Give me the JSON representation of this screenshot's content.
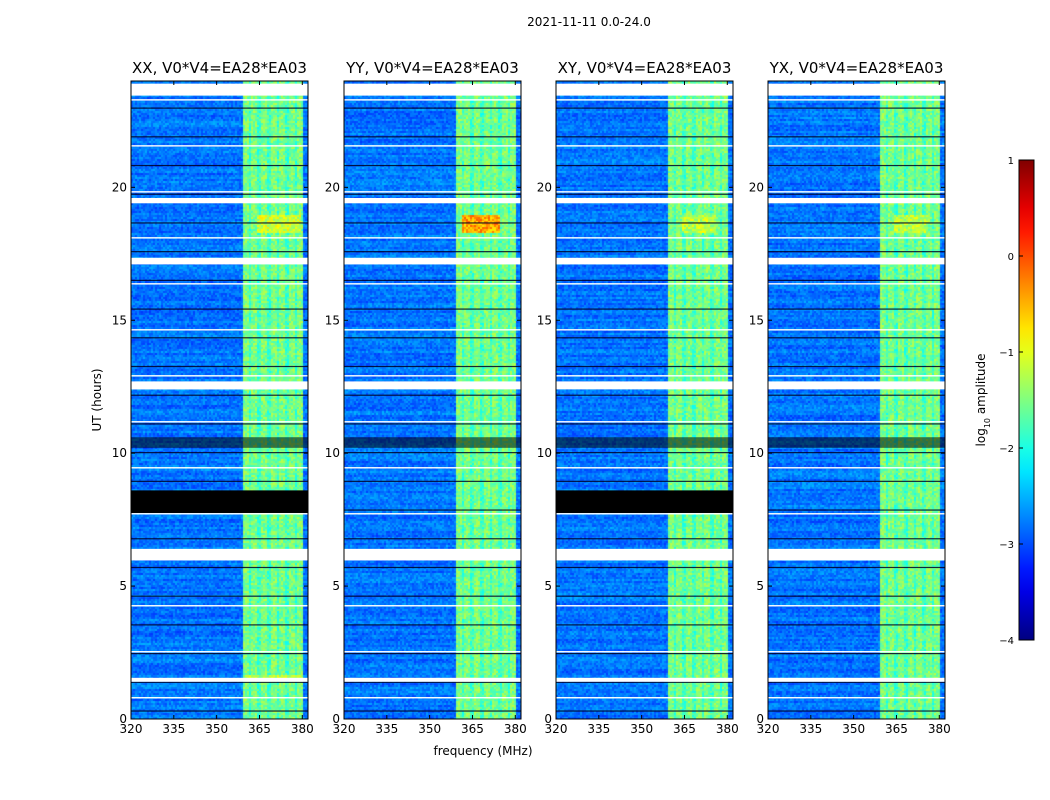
{
  "chart_data": {
    "type": "heatmap",
    "suptitle": "2021-11-11 0.0-24.0",
    "xlabel": "frequency (MHz)",
    "ylabel": "UT (hours)",
    "xlim": [
      320,
      382
    ],
    "ylim": [
      0,
      24
    ],
    "xticks": [
      320,
      335,
      350,
      365,
      380
    ],
    "yticks": [
      0,
      5,
      10,
      15,
      20
    ],
    "colorbar": {
      "label": "log",
      "label_sub": "10",
      "label_rest": " amplitude",
      "range": [
        -4,
        1
      ],
      "ticks": [
        1,
        0,
        -1,
        -2,
        -3,
        -4
      ],
      "tick_labels": [
        "1",
        "0",
        "−1",
        "−2",
        "−3",
        "−4"
      ],
      "colormap": "jet"
    },
    "rfi_band_mhz": [
      359,
      380
    ],
    "panels": [
      {
        "title": "XX, V0*V4=EA28*EA03",
        "blank_rows_ut": [
          [
            23.45,
            23.9
          ],
          [
            19.4,
            19.6
          ],
          [
            17.1,
            17.35
          ],
          [
            12.7,
            12.4
          ],
          [
            6.0,
            6.4
          ],
          [
            1.4,
            1.55
          ],
          [
            12.4,
            12.5
          ]
        ],
        "flagged_rows_ut": [
          [
            7.75,
            8.6
          ],
          [
            10.2,
            10.6
          ]
        ],
        "hot_regions": [
          {
            "ut": [
              18.3,
              19.0
            ],
            "mhz": [
              364,
              379
            ],
            "log_amp": -1.0
          },
          {
            "ut": [
              1.5,
              1.7
            ],
            "mhz": [
              359,
              380
            ],
            "log_amp": -1.1
          }
        ]
      },
      {
        "title": "YY, V0*V4=EA28*EA03",
        "blank_rows_ut": [
          [
            23.45,
            23.9
          ],
          [
            19.4,
            19.6
          ],
          [
            17.1,
            17.35
          ],
          [
            12.4,
            12.7
          ],
          [
            6.0,
            6.4
          ],
          [
            1.4,
            1.55
          ]
        ],
        "flagged_rows_ut": [
          [
            10.2,
            10.6
          ]
        ],
        "hot_regions": [
          {
            "ut": [
              18.3,
              19.0
            ],
            "mhz": [
              361,
              374
            ],
            "log_amp": -0.3
          }
        ]
      },
      {
        "title": "XY, V0*V4=EA28*EA03",
        "blank_rows_ut": [
          [
            23.45,
            23.9
          ],
          [
            19.4,
            19.6
          ],
          [
            17.1,
            17.35
          ],
          [
            12.4,
            12.7
          ],
          [
            6.0,
            6.4
          ],
          [
            1.4,
            1.55
          ]
        ],
        "flagged_rows_ut": [
          [
            7.75,
            8.6
          ],
          [
            10.2,
            10.6
          ]
        ],
        "hot_regions": [
          {
            "ut": [
              18.3,
              19.0
            ],
            "mhz": [
              364,
              376
            ],
            "log_amp": -1.1
          }
        ]
      },
      {
        "title": "YX, V0*V4=EA28*EA03",
        "blank_rows_ut": [
          [
            23.45,
            23.9
          ],
          [
            19.4,
            19.6
          ],
          [
            17.1,
            17.35
          ],
          [
            12.4,
            12.7
          ],
          [
            6.0,
            6.4
          ],
          [
            1.4,
            1.55
          ]
        ],
        "flagged_rows_ut": [
          [
            10.2,
            10.6
          ]
        ],
        "hot_regions": [
          {
            "ut": [
              18.3,
              19.0
            ],
            "mhz": [
              364,
              376
            ],
            "log_amp": -1.1
          }
        ]
      }
    ]
  }
}
